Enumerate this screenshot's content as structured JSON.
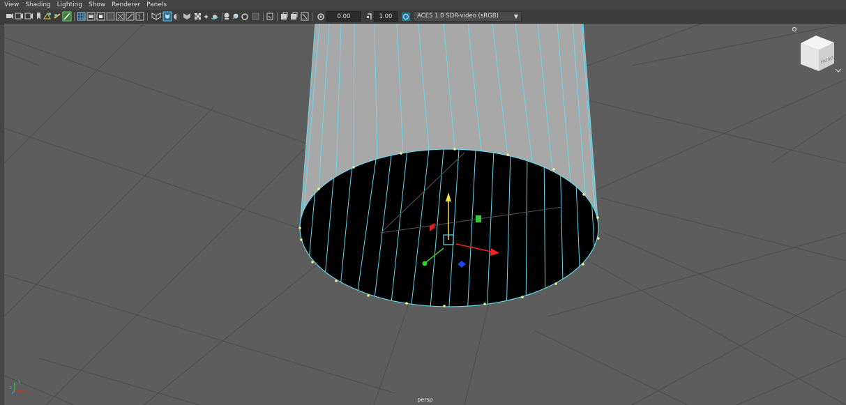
{
  "menubar": {
    "items": [
      "View",
      "Shading",
      "Lighting",
      "Show",
      "Renderer",
      "Panels"
    ]
  },
  "toolbar": {
    "exposure_value": "0.00",
    "gamma_value": "1.00",
    "colorspace": "ACES 1.0 SDR-video (sRGB)",
    "icons": [
      "camera-select-icon",
      "camera-attributes-icon",
      "bookmark-icon",
      "image-plane-icon",
      "grease-pencil-icon",
      "grid-toggle-icon",
      "wireframe-icon",
      "smooth-shade-icon",
      "flat-shade-icon",
      "bounding-box-icon",
      "textured-icon",
      "use-lights-icon",
      "shadows-icon",
      "isolate-icon",
      "xray-icon",
      "xray-joints-icon",
      "backface-icon",
      "ambient-occlusion-icon",
      "motion-blur-icon",
      "anti-aliasing-icon",
      "depth-of-field-icon",
      "resolution-gate-icon",
      "film-gate-icon",
      "field-chart-icon",
      "safe-action-icon",
      "exposure-icon",
      "gamma-icon",
      "color-management-icon"
    ]
  },
  "viewcube": {
    "face_label": "FRONT"
  },
  "viewport": {
    "camera_label": "persp",
    "colors": {
      "background": "#5d5d5d",
      "grid": "#4b4b4b",
      "wireframe": "#66d9ee",
      "vertex": "#f5f07a",
      "cap_fill": "#000000",
      "side_fill": "#a8a8a8"
    }
  },
  "axis_indicator": {
    "x": "x",
    "y": "y",
    "z": "z"
  }
}
